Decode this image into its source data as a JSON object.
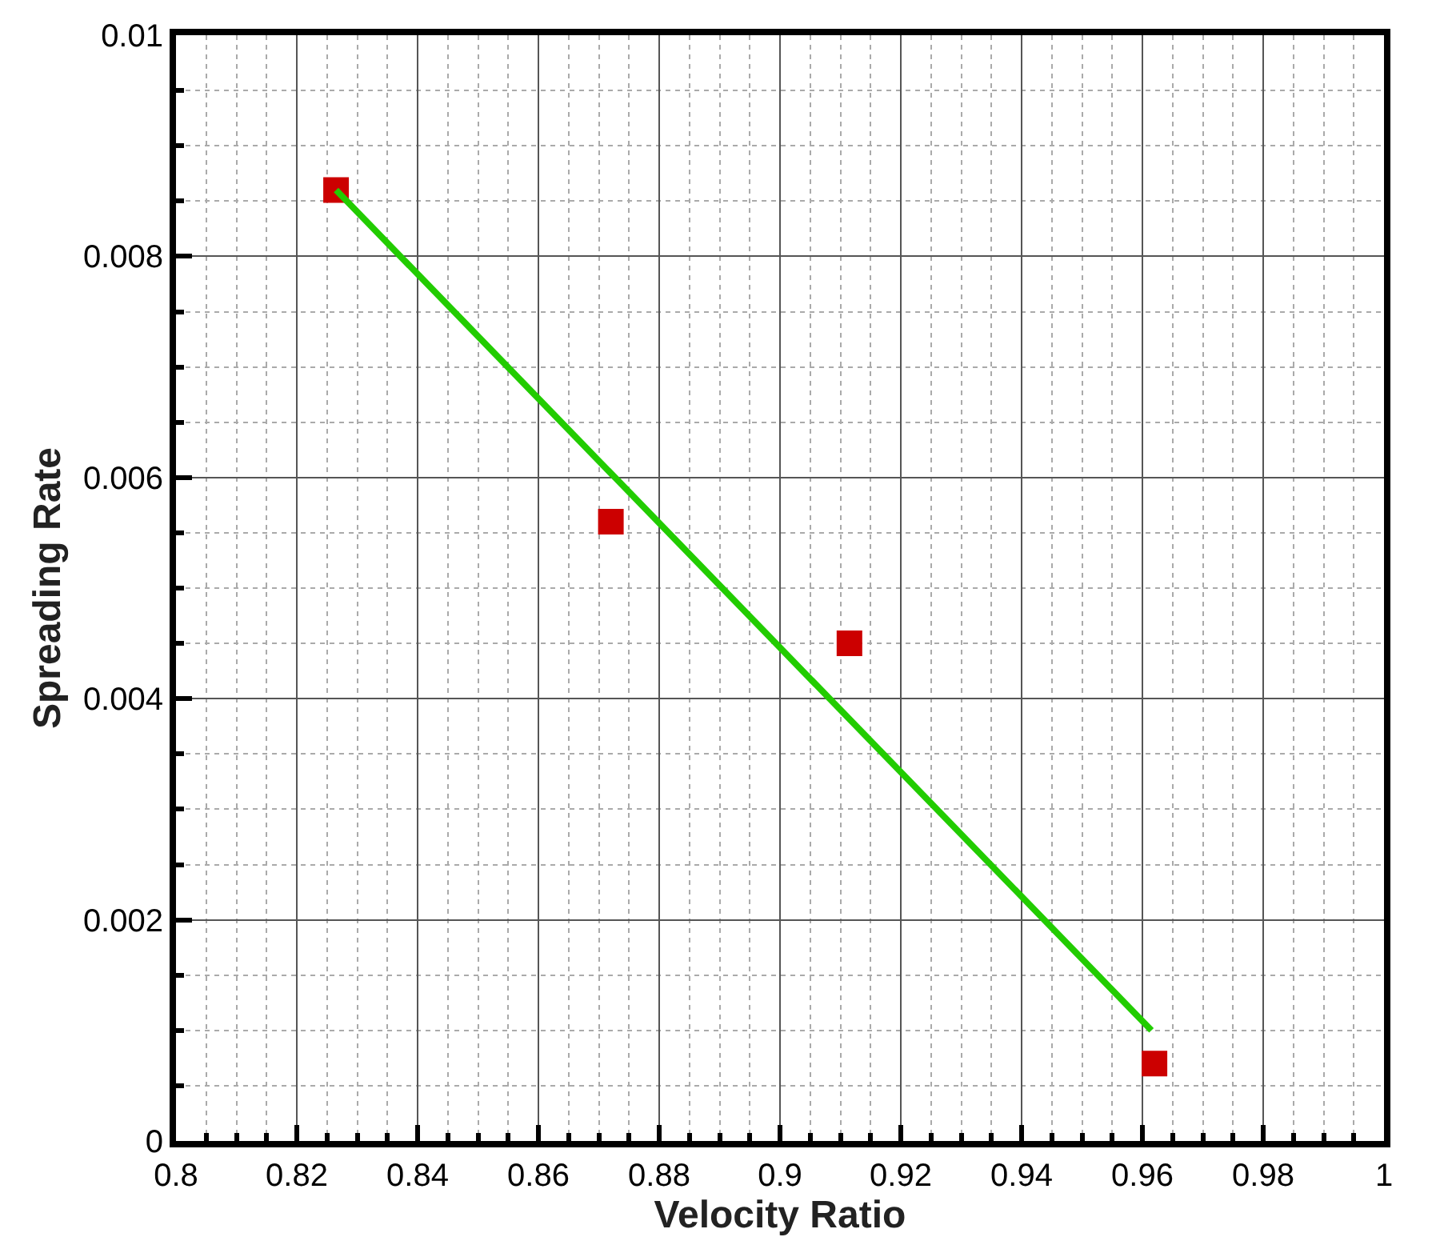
{
  "chart_data": {
    "type": "scatter",
    "xlabel": "Velocity Ratio",
    "ylabel": "Spreading Rate",
    "xlim": [
      0.8,
      1
    ],
    "xticks": [
      0.8,
      0.82,
      0.84,
      0.86,
      0.88,
      0.9,
      0.92,
      0.94,
      0.96,
      0.98,
      1
    ],
    "ylim": [
      0,
      0.01
    ],
    "yticks": [
      0,
      0.002,
      0.004,
      0.006,
      0.008,
      0.01
    ],
    "grid": true,
    "marker": "square",
    "series": [
      {
        "color": "#cc0000",
        "x": [
          0.8265,
          0.872,
          0.9115,
          0.962
        ],
        "values": [
          0.0086,
          0.0056,
          0.0045,
          0.0007
        ]
      },
      {
        "type": "line",
        "color": "#22cc00",
        "marker": "none",
        "line_style": "solid",
        "x": [
          0.8265,
          0.9615
        ],
        "values": [
          0.0086,
          0.001
        ]
      }
    ]
  }
}
